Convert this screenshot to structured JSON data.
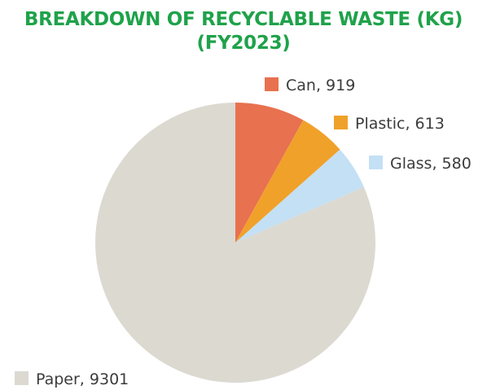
{
  "chart_data": {
    "type": "pie",
    "title": "BREAKDOWN OF RECYCLABLE WASTE (KG)",
    "subtitle": "(FY2023)",
    "slices": [
      {
        "label": "Can",
        "value": 919,
        "color": "#e8714f"
      },
      {
        "label": "Plastic",
        "value": 613,
        "color": "#f0a12a"
      },
      {
        "label": "Glass",
        "value": 580,
        "color": "#c4e0f4"
      },
      {
        "label": "Paper",
        "value": 9301,
        "color": "#dcd9d1"
      }
    ],
    "legend_placement": "labels beside slices"
  }
}
